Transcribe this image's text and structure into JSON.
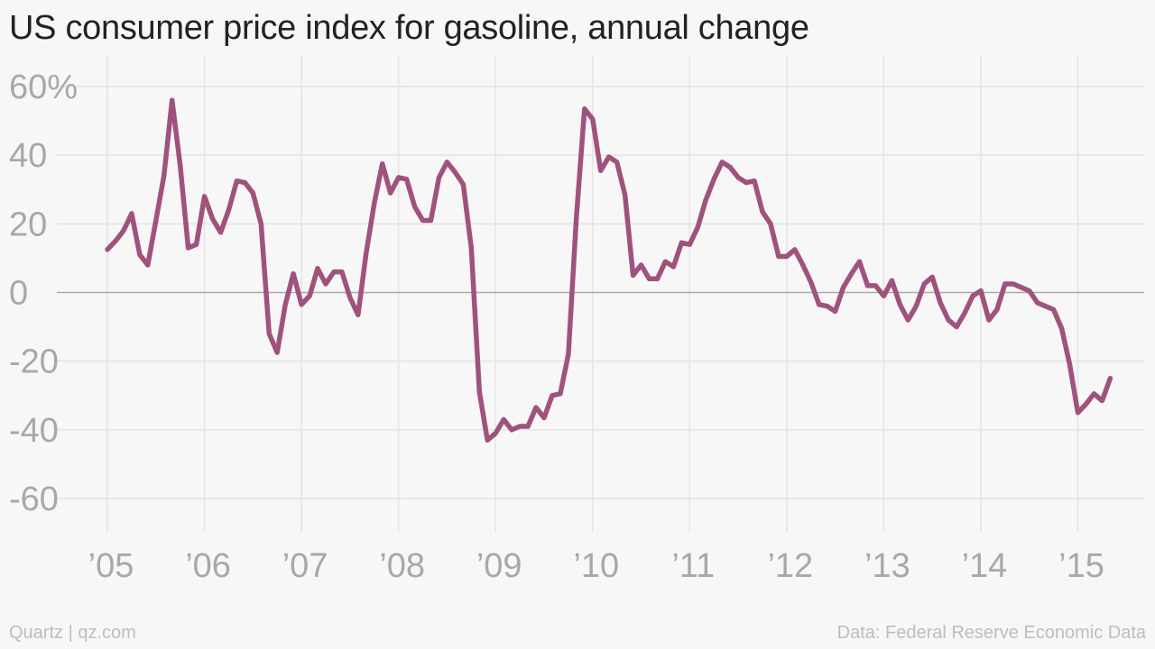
{
  "title": "US consumer price index for gasoline, annual change",
  "footer": {
    "credit": "Quartz | qz.com",
    "source": "Data: Federal Reserve Economic Data"
  },
  "colors": {
    "line": "#a0527e",
    "grid": "#e4e4e4",
    "zero_line": "#aaaaaa",
    "tick_label": "#a8a8a8",
    "title": "#222222",
    "footer": "#bdbdbd",
    "background": "#f7f7f7"
  },
  "chart_data": {
    "type": "line",
    "title": "US consumer price index for gasoline, annual change",
    "xlabel": "",
    "ylabel": "",
    "x_range": [
      2005,
      2015.33
    ],
    "ylim": [
      -70,
      65
    ],
    "grid": true,
    "legend": "none",
    "y_ticks": [
      {
        "value": 60,
        "label": "60%"
      },
      {
        "value": 40,
        "label": "40"
      },
      {
        "value": 20,
        "label": "20"
      },
      {
        "value": 0,
        "label": "0"
      },
      {
        "value": -20,
        "label": "-20"
      },
      {
        "value": -40,
        "label": "-40"
      },
      {
        "value": -60,
        "label": "-60"
      }
    ],
    "x_ticks": [
      {
        "value": 2005,
        "label": "’05"
      },
      {
        "value": 2006,
        "label": "’06"
      },
      {
        "value": 2007,
        "label": "’07"
      },
      {
        "value": 2008,
        "label": "’08"
      },
      {
        "value": 2009,
        "label": "’09"
      },
      {
        "value": 2010,
        "label": "’10"
      },
      {
        "value": 2011,
        "label": "’11"
      },
      {
        "value": 2012,
        "label": "’12"
      },
      {
        "value": 2013,
        "label": "’13"
      },
      {
        "value": 2014,
        "label": "’14"
      },
      {
        "value": 2015,
        "label": "’15"
      }
    ],
    "series": [
      {
        "start": "2005-01",
        "frequency": "monthly",
        "values": [
          12.5,
          15,
          18,
          23,
          11,
          8,
          21,
          34,
          56,
          37,
          13,
          14,
          28,
          21.5,
          17.5,
          24,
          32.5,
          32,
          29,
          20,
          -12,
          -17.5,
          -3.5,
          5.5,
          -3.5,
          -1,
          7,
          2.5,
          6,
          6,
          -1.5,
          -6.5,
          11.5,
          26,
          37.5,
          29,
          33.5,
          33,
          25,
          21,
          21,
          33.5,
          38,
          35,
          31.5,
          13,
          -29,
          -43,
          -41,
          -37,
          -40,
          -39,
          -39,
          -33.5,
          -36.5,
          -30,
          -29.5,
          -18,
          22,
          53.5,
          50.5,
          35.5,
          39.5,
          38,
          28.5,
          5,
          8,
          4,
          4,
          9,
          7.5,
          14.5,
          14,
          19,
          27,
          33,
          38,
          36.5,
          33.5,
          32,
          32.5,
          23.5,
          20,
          10.5,
          10.5,
          12.5,
          8,
          3,
          -3.5,
          -4,
          -5.5,
          1.5,
          5.5,
          9,
          2,
          2,
          -1,
          3.5,
          -3.5,
          -8,
          -4,
          2.5,
          4.5,
          -3,
          -8,
          -10,
          -6,
          -1,
          0.5,
          -8,
          -5,
          2.5,
          2.5,
          1.5,
          0.5,
          -3,
          -4,
          -5,
          -10.5,
          -21,
          -35,
          -32.5,
          -29.5,
          -31.5,
          -25
        ]
      }
    ]
  }
}
